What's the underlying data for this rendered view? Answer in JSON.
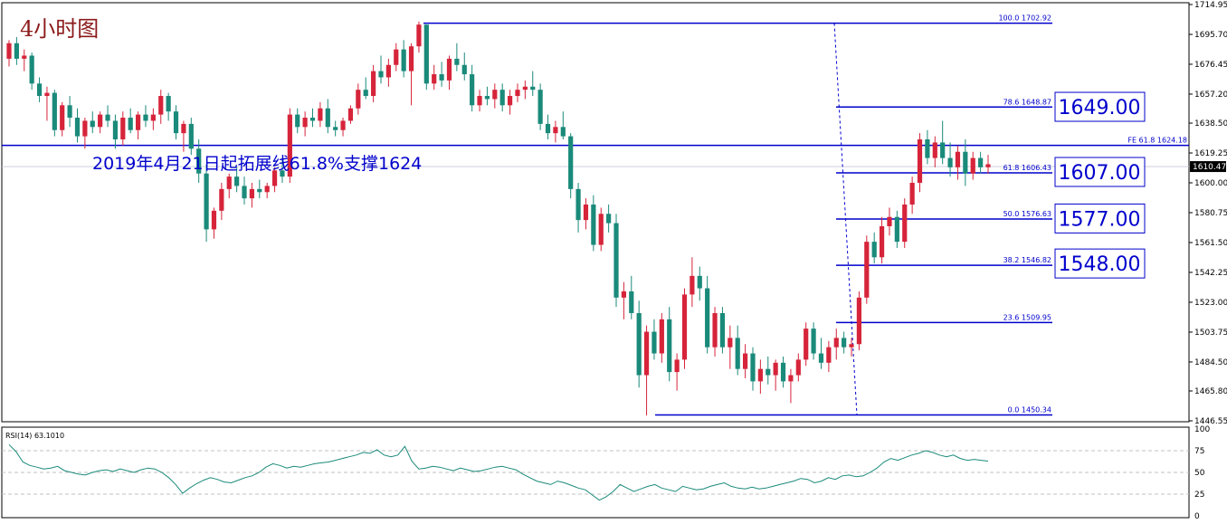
{
  "title": "4小时图",
  "annotation": "2019年4月21日起拓展线61.8%支撑1624",
  "colors": {
    "bull": "#d6243a",
    "bear": "#1a8a7a",
    "fib": "#0000cc",
    "rsi": "#1a8a7a",
    "grid": "#c0c0c0"
  },
  "price_axis": {
    "min": 1446.55,
    "max": 1714.95,
    "ticks": [
      "1714.95",
      "1695.70",
      "1676.45",
      "1657.20",
      "1638.50",
      "1619.25",
      "1600.00",
      "1580.75",
      "1561.50",
      "1542.25",
      "1523.00",
      "1503.75",
      "1484.50",
      "1465.80",
      "1446.55"
    ],
    "current_price": "1610.47"
  },
  "fib_levels": [
    {
      "label": "100.0  1702.92",
      "price": 1702.92
    },
    {
      "label": "78.6  1648.87",
      "price": 1648.87
    },
    {
      "label": "61.8  1606.43",
      "price": 1606.43
    },
    {
      "label": "50.0  1576.63",
      "price": 1576.63
    },
    {
      "label": "38.2  1546.82",
      "price": 1546.82
    },
    {
      "label": "23.6  1509.95",
      "price": 1509.95
    },
    {
      "label": "0.0  1450.34",
      "price": 1450.34
    }
  ],
  "fe_line": {
    "label": "FE 61.8  1624.18",
    "price": 1624.18
  },
  "boxes": [
    {
      "text": "1649.00",
      "price": 1649.0
    },
    {
      "text": "1607.00",
      "price": 1607.0
    },
    {
      "text": "1577.00",
      "price": 1577.0
    },
    {
      "text": "1548.00",
      "price": 1548.0
    }
  ],
  "rsi": {
    "label": "RSI(14) 63.1010",
    "ticks": [
      "100",
      "75",
      "50",
      "25",
      "0"
    ],
    "levels": [
      75,
      50,
      25
    ],
    "values": [
      82,
      74,
      62,
      58,
      56,
      54,
      55,
      57,
      52,
      50,
      48,
      47,
      50,
      52,
      53,
      51,
      54,
      52,
      50,
      53,
      55,
      54,
      50,
      44,
      36,
      26,
      32,
      37,
      41,
      44,
      42,
      39,
      38,
      41,
      44,
      46,
      50,
      56,
      60,
      58,
      55,
      57,
      56,
      58,
      60,
      61,
      62,
      64,
      66,
      68,
      70,
      73,
      72,
      76,
      70,
      68,
      70,
      80,
      63,
      54,
      55,
      57,
      56,
      54,
      52,
      55,
      53,
      51,
      52,
      54,
      56,
      57,
      55,
      53,
      48,
      44,
      40,
      38,
      36,
      40,
      38,
      35,
      32,
      30,
      24,
      18,
      22,
      28,
      36,
      32,
      28,
      31,
      34,
      36,
      32,
      30,
      28,
      34,
      32,
      30,
      31,
      34,
      36,
      38,
      34,
      32,
      31,
      33,
      31,
      32,
      34,
      36,
      38,
      40,
      43,
      42,
      38,
      40,
      44,
      42,
      46,
      47,
      45,
      46,
      50,
      55,
      62,
      66,
      64,
      67,
      70,
      72,
      75,
      73,
      70,
      68,
      70,
      66,
      64,
      65,
      64,
      63
    ]
  },
  "candles": [
    {
      "o": 1680,
      "h": 1692,
      "l": 1675,
      "c": 1690
    },
    {
      "o": 1690,
      "h": 1694,
      "l": 1676,
      "c": 1680
    },
    {
      "o": 1680,
      "h": 1686,
      "l": 1672,
      "c": 1682
    },
    {
      "o": 1682,
      "h": 1684,
      "l": 1660,
      "c": 1664
    },
    {
      "o": 1664,
      "h": 1668,
      "l": 1652,
      "c": 1656
    },
    {
      "o": 1656,
      "h": 1662,
      "l": 1640,
      "c": 1658
    },
    {
      "o": 1658,
      "h": 1660,
      "l": 1630,
      "c": 1634
    },
    {
      "o": 1634,
      "h": 1652,
      "l": 1630,
      "c": 1650
    },
    {
      "o": 1650,
      "h": 1656,
      "l": 1636,
      "c": 1642
    },
    {
      "o": 1642,
      "h": 1648,
      "l": 1626,
      "c": 1630
    },
    {
      "o": 1630,
      "h": 1642,
      "l": 1622,
      "c": 1640
    },
    {
      "o": 1640,
      "h": 1646,
      "l": 1632,
      "c": 1636
    },
    {
      "o": 1636,
      "h": 1646,
      "l": 1632,
      "c": 1644
    },
    {
      "o": 1644,
      "h": 1650,
      "l": 1636,
      "c": 1640
    },
    {
      "o": 1640,
      "h": 1644,
      "l": 1622,
      "c": 1628
    },
    {
      "o": 1628,
      "h": 1646,
      "l": 1624,
      "c": 1642
    },
    {
      "o": 1642,
      "h": 1648,
      "l": 1632,
      "c": 1634
    },
    {
      "o": 1634,
      "h": 1646,
      "l": 1628,
      "c": 1644
    },
    {
      "o": 1644,
      "h": 1650,
      "l": 1636,
      "c": 1640
    },
    {
      "o": 1640,
      "h": 1648,
      "l": 1634,
      "c": 1644
    },
    {
      "o": 1644,
      "h": 1660,
      "l": 1638,
      "c": 1656
    },
    {
      "o": 1656,
      "h": 1658,
      "l": 1640,
      "c": 1646
    },
    {
      "o": 1646,
      "h": 1650,
      "l": 1628,
      "c": 1632
    },
    {
      "o": 1632,
      "h": 1640,
      "l": 1620,
      "c": 1638
    },
    {
      "o": 1638,
      "h": 1642,
      "l": 1618,
      "c": 1622
    },
    {
      "o": 1622,
      "h": 1628,
      "l": 1600,
      "c": 1606
    },
    {
      "o": 1606,
      "h": 1612,
      "l": 1562,
      "c": 1570
    },
    {
      "o": 1570,
      "h": 1584,
      "l": 1564,
      "c": 1582
    },
    {
      "o": 1582,
      "h": 1600,
      "l": 1576,
      "c": 1596
    },
    {
      "o": 1596,
      "h": 1606,
      "l": 1590,
      "c": 1604
    },
    {
      "o": 1604,
      "h": 1610,
      "l": 1594,
      "c": 1598
    },
    {
      "o": 1598,
      "h": 1604,
      "l": 1586,
      "c": 1590
    },
    {
      "o": 1590,
      "h": 1600,
      "l": 1584,
      "c": 1596
    },
    {
      "o": 1596,
      "h": 1602,
      "l": 1590,
      "c": 1594
    },
    {
      "o": 1594,
      "h": 1600,
      "l": 1590,
      "c": 1598
    },
    {
      "o": 1598,
      "h": 1610,
      "l": 1594,
      "c": 1608
    },
    {
      "o": 1608,
      "h": 1616,
      "l": 1600,
      "c": 1604
    },
    {
      "o": 1604,
      "h": 1648,
      "l": 1600,
      "c": 1644
    },
    {
      "o": 1644,
      "h": 1648,
      "l": 1632,
      "c": 1636
    },
    {
      "o": 1636,
      "h": 1646,
      "l": 1630,
      "c": 1642
    },
    {
      "o": 1642,
      "h": 1648,
      "l": 1636,
      "c": 1640
    },
    {
      "o": 1640,
      "h": 1652,
      "l": 1636,
      "c": 1648
    },
    {
      "o": 1648,
      "h": 1654,
      "l": 1632,
      "c": 1636
    },
    {
      "o": 1636,
      "h": 1640,
      "l": 1630,
      "c": 1634
    },
    {
      "o": 1634,
      "h": 1642,
      "l": 1630,
      "c": 1640
    },
    {
      "o": 1640,
      "h": 1650,
      "l": 1638,
      "c": 1648
    },
    {
      "o": 1648,
      "h": 1664,
      "l": 1644,
      "c": 1660
    },
    {
      "o": 1660,
      "h": 1668,
      "l": 1654,
      "c": 1656
    },
    {
      "o": 1656,
      "h": 1676,
      "l": 1652,
      "c": 1672
    },
    {
      "o": 1672,
      "h": 1682,
      "l": 1664,
      "c": 1668
    },
    {
      "o": 1668,
      "h": 1680,
      "l": 1662,
      "c": 1676
    },
    {
      "o": 1676,
      "h": 1690,
      "l": 1672,
      "c": 1686
    },
    {
      "o": 1686,
      "h": 1692,
      "l": 1668,
      "c": 1672
    },
    {
      "o": 1672,
      "h": 1690,
      "l": 1650,
      "c": 1688
    },
    {
      "o": 1688,
      "h": 1704,
      "l": 1684,
      "c": 1702
    },
    {
      "o": 1702,
      "h": 1702,
      "l": 1660,
      "c": 1664
    },
    {
      "o": 1664,
      "h": 1676,
      "l": 1660,
      "c": 1670
    },
    {
      "o": 1670,
      "h": 1678,
      "l": 1662,
      "c": 1666
    },
    {
      "o": 1666,
      "h": 1682,
      "l": 1660,
      "c": 1680
    },
    {
      "o": 1680,
      "h": 1690,
      "l": 1672,
      "c": 1676
    },
    {
      "o": 1676,
      "h": 1684,
      "l": 1666,
      "c": 1670
    },
    {
      "o": 1670,
      "h": 1676,
      "l": 1646,
      "c": 1650
    },
    {
      "o": 1650,
      "h": 1660,
      "l": 1646,
      "c": 1656
    },
    {
      "o": 1656,
      "h": 1662,
      "l": 1650,
      "c": 1654
    },
    {
      "o": 1654,
      "h": 1664,
      "l": 1648,
      "c": 1660
    },
    {
      "o": 1660,
      "h": 1664,
      "l": 1646,
      "c": 1650
    },
    {
      "o": 1650,
      "h": 1660,
      "l": 1644,
      "c": 1656
    },
    {
      "o": 1656,
      "h": 1664,
      "l": 1652,
      "c": 1660
    },
    {
      "o": 1660,
      "h": 1666,
      "l": 1654,
      "c": 1662
    },
    {
      "o": 1662,
      "h": 1672,
      "l": 1656,
      "c": 1660
    },
    {
      "o": 1660,
      "h": 1664,
      "l": 1634,
      "c": 1638
    },
    {
      "o": 1638,
      "h": 1644,
      "l": 1628,
      "c": 1632
    },
    {
      "o": 1632,
      "h": 1640,
      "l": 1626,
      "c": 1636
    },
    {
      "o": 1636,
      "h": 1646,
      "l": 1628,
      "c": 1630
    },
    {
      "o": 1630,
      "h": 1632,
      "l": 1590,
      "c": 1596
    },
    {
      "o": 1596,
      "h": 1600,
      "l": 1568,
      "c": 1576
    },
    {
      "o": 1576,
      "h": 1590,
      "l": 1570,
      "c": 1586
    },
    {
      "o": 1586,
      "h": 1592,
      "l": 1556,
      "c": 1560
    },
    {
      "o": 1560,
      "h": 1584,
      "l": 1556,
      "c": 1580
    },
    {
      "o": 1580,
      "h": 1586,
      "l": 1568,
      "c": 1574
    },
    {
      "o": 1574,
      "h": 1580,
      "l": 1520,
      "c": 1526
    },
    {
      "o": 1526,
      "h": 1536,
      "l": 1512,
      "c": 1530
    },
    {
      "o": 1530,
      "h": 1540,
      "l": 1512,
      "c": 1516
    },
    {
      "o": 1516,
      "h": 1524,
      "l": 1468,
      "c": 1476
    },
    {
      "o": 1476,
      "h": 1508,
      "l": 1450,
      "c": 1504
    },
    {
      "o": 1504,
      "h": 1512,
      "l": 1486,
      "c": 1490
    },
    {
      "o": 1490,
      "h": 1516,
      "l": 1484,
      "c": 1512
    },
    {
      "o": 1512,
      "h": 1520,
      "l": 1472,
      "c": 1478
    },
    {
      "o": 1478,
      "h": 1490,
      "l": 1466,
      "c": 1486
    },
    {
      "o": 1486,
      "h": 1532,
      "l": 1480,
      "c": 1528
    },
    {
      "o": 1528,
      "h": 1552,
      "l": 1520,
      "c": 1540
    },
    {
      "o": 1540,
      "h": 1546,
      "l": 1524,
      "c": 1532
    },
    {
      "o": 1532,
      "h": 1540,
      "l": 1490,
      "c": 1494
    },
    {
      "o": 1494,
      "h": 1520,
      "l": 1488,
      "c": 1516
    },
    {
      "o": 1516,
      "h": 1520,
      "l": 1490,
      "c": 1494
    },
    {
      "o": 1494,
      "h": 1508,
      "l": 1480,
      "c": 1500
    },
    {
      "o": 1500,
      "h": 1508,
      "l": 1476,
      "c": 1480
    },
    {
      "o": 1480,
      "h": 1496,
      "l": 1474,
      "c": 1490
    },
    {
      "o": 1490,
      "h": 1494,
      "l": 1466,
      "c": 1472
    },
    {
      "o": 1472,
      "h": 1486,
      "l": 1464,
      "c": 1480
    },
    {
      "o": 1480,
      "h": 1488,
      "l": 1470,
      "c": 1476
    },
    {
      "o": 1476,
      "h": 1486,
      "l": 1466,
      "c": 1484
    },
    {
      "o": 1484,
      "h": 1488,
      "l": 1468,
      "c": 1472
    },
    {
      "o": 1472,
      "h": 1480,
      "l": 1458,
      "c": 1476
    },
    {
      "o": 1476,
      "h": 1490,
      "l": 1472,
      "c": 1486
    },
    {
      "o": 1486,
      "h": 1510,
      "l": 1482,
      "c": 1506
    },
    {
      "o": 1506,
      "h": 1510,
      "l": 1486,
      "c": 1490
    },
    {
      "o": 1490,
      "h": 1500,
      "l": 1480,
      "c": 1484
    },
    {
      "o": 1484,
      "h": 1498,
      "l": 1478,
      "c": 1494
    },
    {
      "o": 1494,
      "h": 1506,
      "l": 1486,
      "c": 1500
    },
    {
      "o": 1500,
      "h": 1504,
      "l": 1490,
      "c": 1494
    },
    {
      "o": 1494,
      "h": 1500,
      "l": 1488,
      "c": 1496
    },
    {
      "o": 1496,
      "h": 1530,
      "l": 1492,
      "c": 1526
    },
    {
      "o": 1526,
      "h": 1566,
      "l": 1522,
      "c": 1562
    },
    {
      "o": 1562,
      "h": 1568,
      "l": 1548,
      "c": 1552
    },
    {
      "o": 1552,
      "h": 1578,
      "l": 1548,
      "c": 1572
    },
    {
      "o": 1572,
      "h": 1584,
      "l": 1566,
      "c": 1578
    },
    {
      "o": 1578,
      "h": 1582,
      "l": 1558,
      "c": 1562
    },
    {
      "o": 1562,
      "h": 1590,
      "l": 1558,
      "c": 1586
    },
    {
      "o": 1586,
      "h": 1604,
      "l": 1580,
      "c": 1600
    },
    {
      "o": 1600,
      "h": 1632,
      "l": 1594,
      "c": 1628
    },
    {
      "o": 1628,
      "h": 1634,
      "l": 1612,
      "c": 1616
    },
    {
      "o": 1616,
      "h": 1630,
      "l": 1610,
      "c": 1626
    },
    {
      "o": 1626,
      "h": 1640,
      "l": 1612,
      "c": 1616
    },
    {
      "o": 1616,
      "h": 1626,
      "l": 1604,
      "c": 1610
    },
    {
      "o": 1610,
      "h": 1624,
      "l": 1602,
      "c": 1620
    },
    {
      "o": 1620,
      "h": 1628,
      "l": 1598,
      "c": 1606
    },
    {
      "o": 1606,
      "h": 1620,
      "l": 1602,
      "c": 1616
    },
    {
      "o": 1616,
      "h": 1620,
      "l": 1606,
      "c": 1610
    },
    {
      "o": 1610,
      "h": 1618,
      "l": 1606,
      "c": 1612
    }
  ]
}
